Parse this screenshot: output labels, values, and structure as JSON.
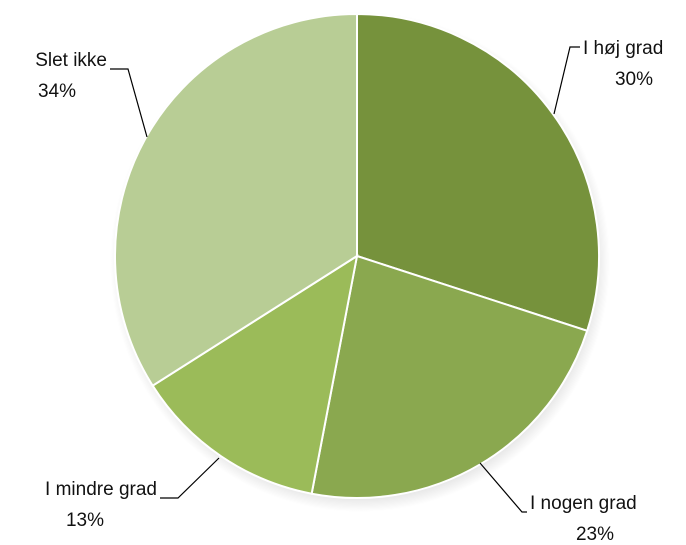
{
  "chart_data": {
    "type": "pie",
    "title": "",
    "categories": [
      "I høj grad",
      "I nogen grad",
      "I mindre grad",
      "Slet ikke"
    ],
    "values": [
      30,
      23,
      13,
      34
    ],
    "value_labels": [
      "30%",
      "23%",
      "13%",
      "34%"
    ],
    "colors": [
      "#76923c",
      "#8aa84f",
      "#9bbb59",
      "#b8cd95"
    ],
    "legend": "none",
    "labels_outside": true
  }
}
